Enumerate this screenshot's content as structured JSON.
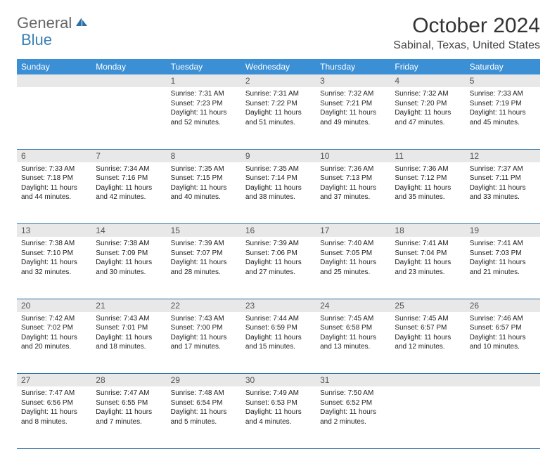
{
  "logo": {
    "general": "General",
    "blue": "Blue"
  },
  "title": "October 2024",
  "location": "Sabinal, Texas, United States",
  "colors": {
    "header_bg": "#3b8fd4",
    "header_text": "#ffffff",
    "daynum_bg": "#e8e8e8",
    "border": "#2a6fa5",
    "logo_gray": "#666666",
    "logo_blue": "#3b7fb5"
  },
  "weekdays": [
    "Sunday",
    "Monday",
    "Tuesday",
    "Wednesday",
    "Thursday",
    "Friday",
    "Saturday"
  ],
  "weeks": [
    {
      "nums": [
        "",
        "",
        "1",
        "2",
        "3",
        "4",
        "5"
      ],
      "cells": [
        null,
        null,
        {
          "sunrise": "Sunrise: 7:31 AM",
          "sunset": "Sunset: 7:23 PM",
          "dl1": "Daylight: 11 hours",
          "dl2": "and 52 minutes."
        },
        {
          "sunrise": "Sunrise: 7:31 AM",
          "sunset": "Sunset: 7:22 PM",
          "dl1": "Daylight: 11 hours",
          "dl2": "and 51 minutes."
        },
        {
          "sunrise": "Sunrise: 7:32 AM",
          "sunset": "Sunset: 7:21 PM",
          "dl1": "Daylight: 11 hours",
          "dl2": "and 49 minutes."
        },
        {
          "sunrise": "Sunrise: 7:32 AM",
          "sunset": "Sunset: 7:20 PM",
          "dl1": "Daylight: 11 hours",
          "dl2": "and 47 minutes."
        },
        {
          "sunrise": "Sunrise: 7:33 AM",
          "sunset": "Sunset: 7:19 PM",
          "dl1": "Daylight: 11 hours",
          "dl2": "and 45 minutes."
        }
      ]
    },
    {
      "nums": [
        "6",
        "7",
        "8",
        "9",
        "10",
        "11",
        "12"
      ],
      "cells": [
        {
          "sunrise": "Sunrise: 7:33 AM",
          "sunset": "Sunset: 7:18 PM",
          "dl1": "Daylight: 11 hours",
          "dl2": "and 44 minutes."
        },
        {
          "sunrise": "Sunrise: 7:34 AM",
          "sunset": "Sunset: 7:16 PM",
          "dl1": "Daylight: 11 hours",
          "dl2": "and 42 minutes."
        },
        {
          "sunrise": "Sunrise: 7:35 AM",
          "sunset": "Sunset: 7:15 PM",
          "dl1": "Daylight: 11 hours",
          "dl2": "and 40 minutes."
        },
        {
          "sunrise": "Sunrise: 7:35 AM",
          "sunset": "Sunset: 7:14 PM",
          "dl1": "Daylight: 11 hours",
          "dl2": "and 38 minutes."
        },
        {
          "sunrise": "Sunrise: 7:36 AM",
          "sunset": "Sunset: 7:13 PM",
          "dl1": "Daylight: 11 hours",
          "dl2": "and 37 minutes."
        },
        {
          "sunrise": "Sunrise: 7:36 AM",
          "sunset": "Sunset: 7:12 PM",
          "dl1": "Daylight: 11 hours",
          "dl2": "and 35 minutes."
        },
        {
          "sunrise": "Sunrise: 7:37 AM",
          "sunset": "Sunset: 7:11 PM",
          "dl1": "Daylight: 11 hours",
          "dl2": "and 33 minutes."
        }
      ]
    },
    {
      "nums": [
        "13",
        "14",
        "15",
        "16",
        "17",
        "18",
        "19"
      ],
      "cells": [
        {
          "sunrise": "Sunrise: 7:38 AM",
          "sunset": "Sunset: 7:10 PM",
          "dl1": "Daylight: 11 hours",
          "dl2": "and 32 minutes."
        },
        {
          "sunrise": "Sunrise: 7:38 AM",
          "sunset": "Sunset: 7:09 PM",
          "dl1": "Daylight: 11 hours",
          "dl2": "and 30 minutes."
        },
        {
          "sunrise": "Sunrise: 7:39 AM",
          "sunset": "Sunset: 7:07 PM",
          "dl1": "Daylight: 11 hours",
          "dl2": "and 28 minutes."
        },
        {
          "sunrise": "Sunrise: 7:39 AM",
          "sunset": "Sunset: 7:06 PM",
          "dl1": "Daylight: 11 hours",
          "dl2": "and 27 minutes."
        },
        {
          "sunrise": "Sunrise: 7:40 AM",
          "sunset": "Sunset: 7:05 PM",
          "dl1": "Daylight: 11 hours",
          "dl2": "and 25 minutes."
        },
        {
          "sunrise": "Sunrise: 7:41 AM",
          "sunset": "Sunset: 7:04 PM",
          "dl1": "Daylight: 11 hours",
          "dl2": "and 23 minutes."
        },
        {
          "sunrise": "Sunrise: 7:41 AM",
          "sunset": "Sunset: 7:03 PM",
          "dl1": "Daylight: 11 hours",
          "dl2": "and 21 minutes."
        }
      ]
    },
    {
      "nums": [
        "20",
        "21",
        "22",
        "23",
        "24",
        "25",
        "26"
      ],
      "cells": [
        {
          "sunrise": "Sunrise: 7:42 AM",
          "sunset": "Sunset: 7:02 PM",
          "dl1": "Daylight: 11 hours",
          "dl2": "and 20 minutes."
        },
        {
          "sunrise": "Sunrise: 7:43 AM",
          "sunset": "Sunset: 7:01 PM",
          "dl1": "Daylight: 11 hours",
          "dl2": "and 18 minutes."
        },
        {
          "sunrise": "Sunrise: 7:43 AM",
          "sunset": "Sunset: 7:00 PM",
          "dl1": "Daylight: 11 hours",
          "dl2": "and 17 minutes."
        },
        {
          "sunrise": "Sunrise: 7:44 AM",
          "sunset": "Sunset: 6:59 PM",
          "dl1": "Daylight: 11 hours",
          "dl2": "and 15 minutes."
        },
        {
          "sunrise": "Sunrise: 7:45 AM",
          "sunset": "Sunset: 6:58 PM",
          "dl1": "Daylight: 11 hours",
          "dl2": "and 13 minutes."
        },
        {
          "sunrise": "Sunrise: 7:45 AM",
          "sunset": "Sunset: 6:57 PM",
          "dl1": "Daylight: 11 hours",
          "dl2": "and 12 minutes."
        },
        {
          "sunrise": "Sunrise: 7:46 AM",
          "sunset": "Sunset: 6:57 PM",
          "dl1": "Daylight: 11 hours",
          "dl2": "and 10 minutes."
        }
      ]
    },
    {
      "nums": [
        "27",
        "28",
        "29",
        "30",
        "31",
        "",
        ""
      ],
      "cells": [
        {
          "sunrise": "Sunrise: 7:47 AM",
          "sunset": "Sunset: 6:56 PM",
          "dl1": "Daylight: 11 hours",
          "dl2": "and 8 minutes."
        },
        {
          "sunrise": "Sunrise: 7:47 AM",
          "sunset": "Sunset: 6:55 PM",
          "dl1": "Daylight: 11 hours",
          "dl2": "and 7 minutes."
        },
        {
          "sunrise": "Sunrise: 7:48 AM",
          "sunset": "Sunset: 6:54 PM",
          "dl1": "Daylight: 11 hours",
          "dl2": "and 5 minutes."
        },
        {
          "sunrise": "Sunrise: 7:49 AM",
          "sunset": "Sunset: 6:53 PM",
          "dl1": "Daylight: 11 hours",
          "dl2": "and 4 minutes."
        },
        {
          "sunrise": "Sunrise: 7:50 AM",
          "sunset": "Sunset: 6:52 PM",
          "dl1": "Daylight: 11 hours",
          "dl2": "and 2 minutes."
        },
        null,
        null
      ]
    }
  ]
}
